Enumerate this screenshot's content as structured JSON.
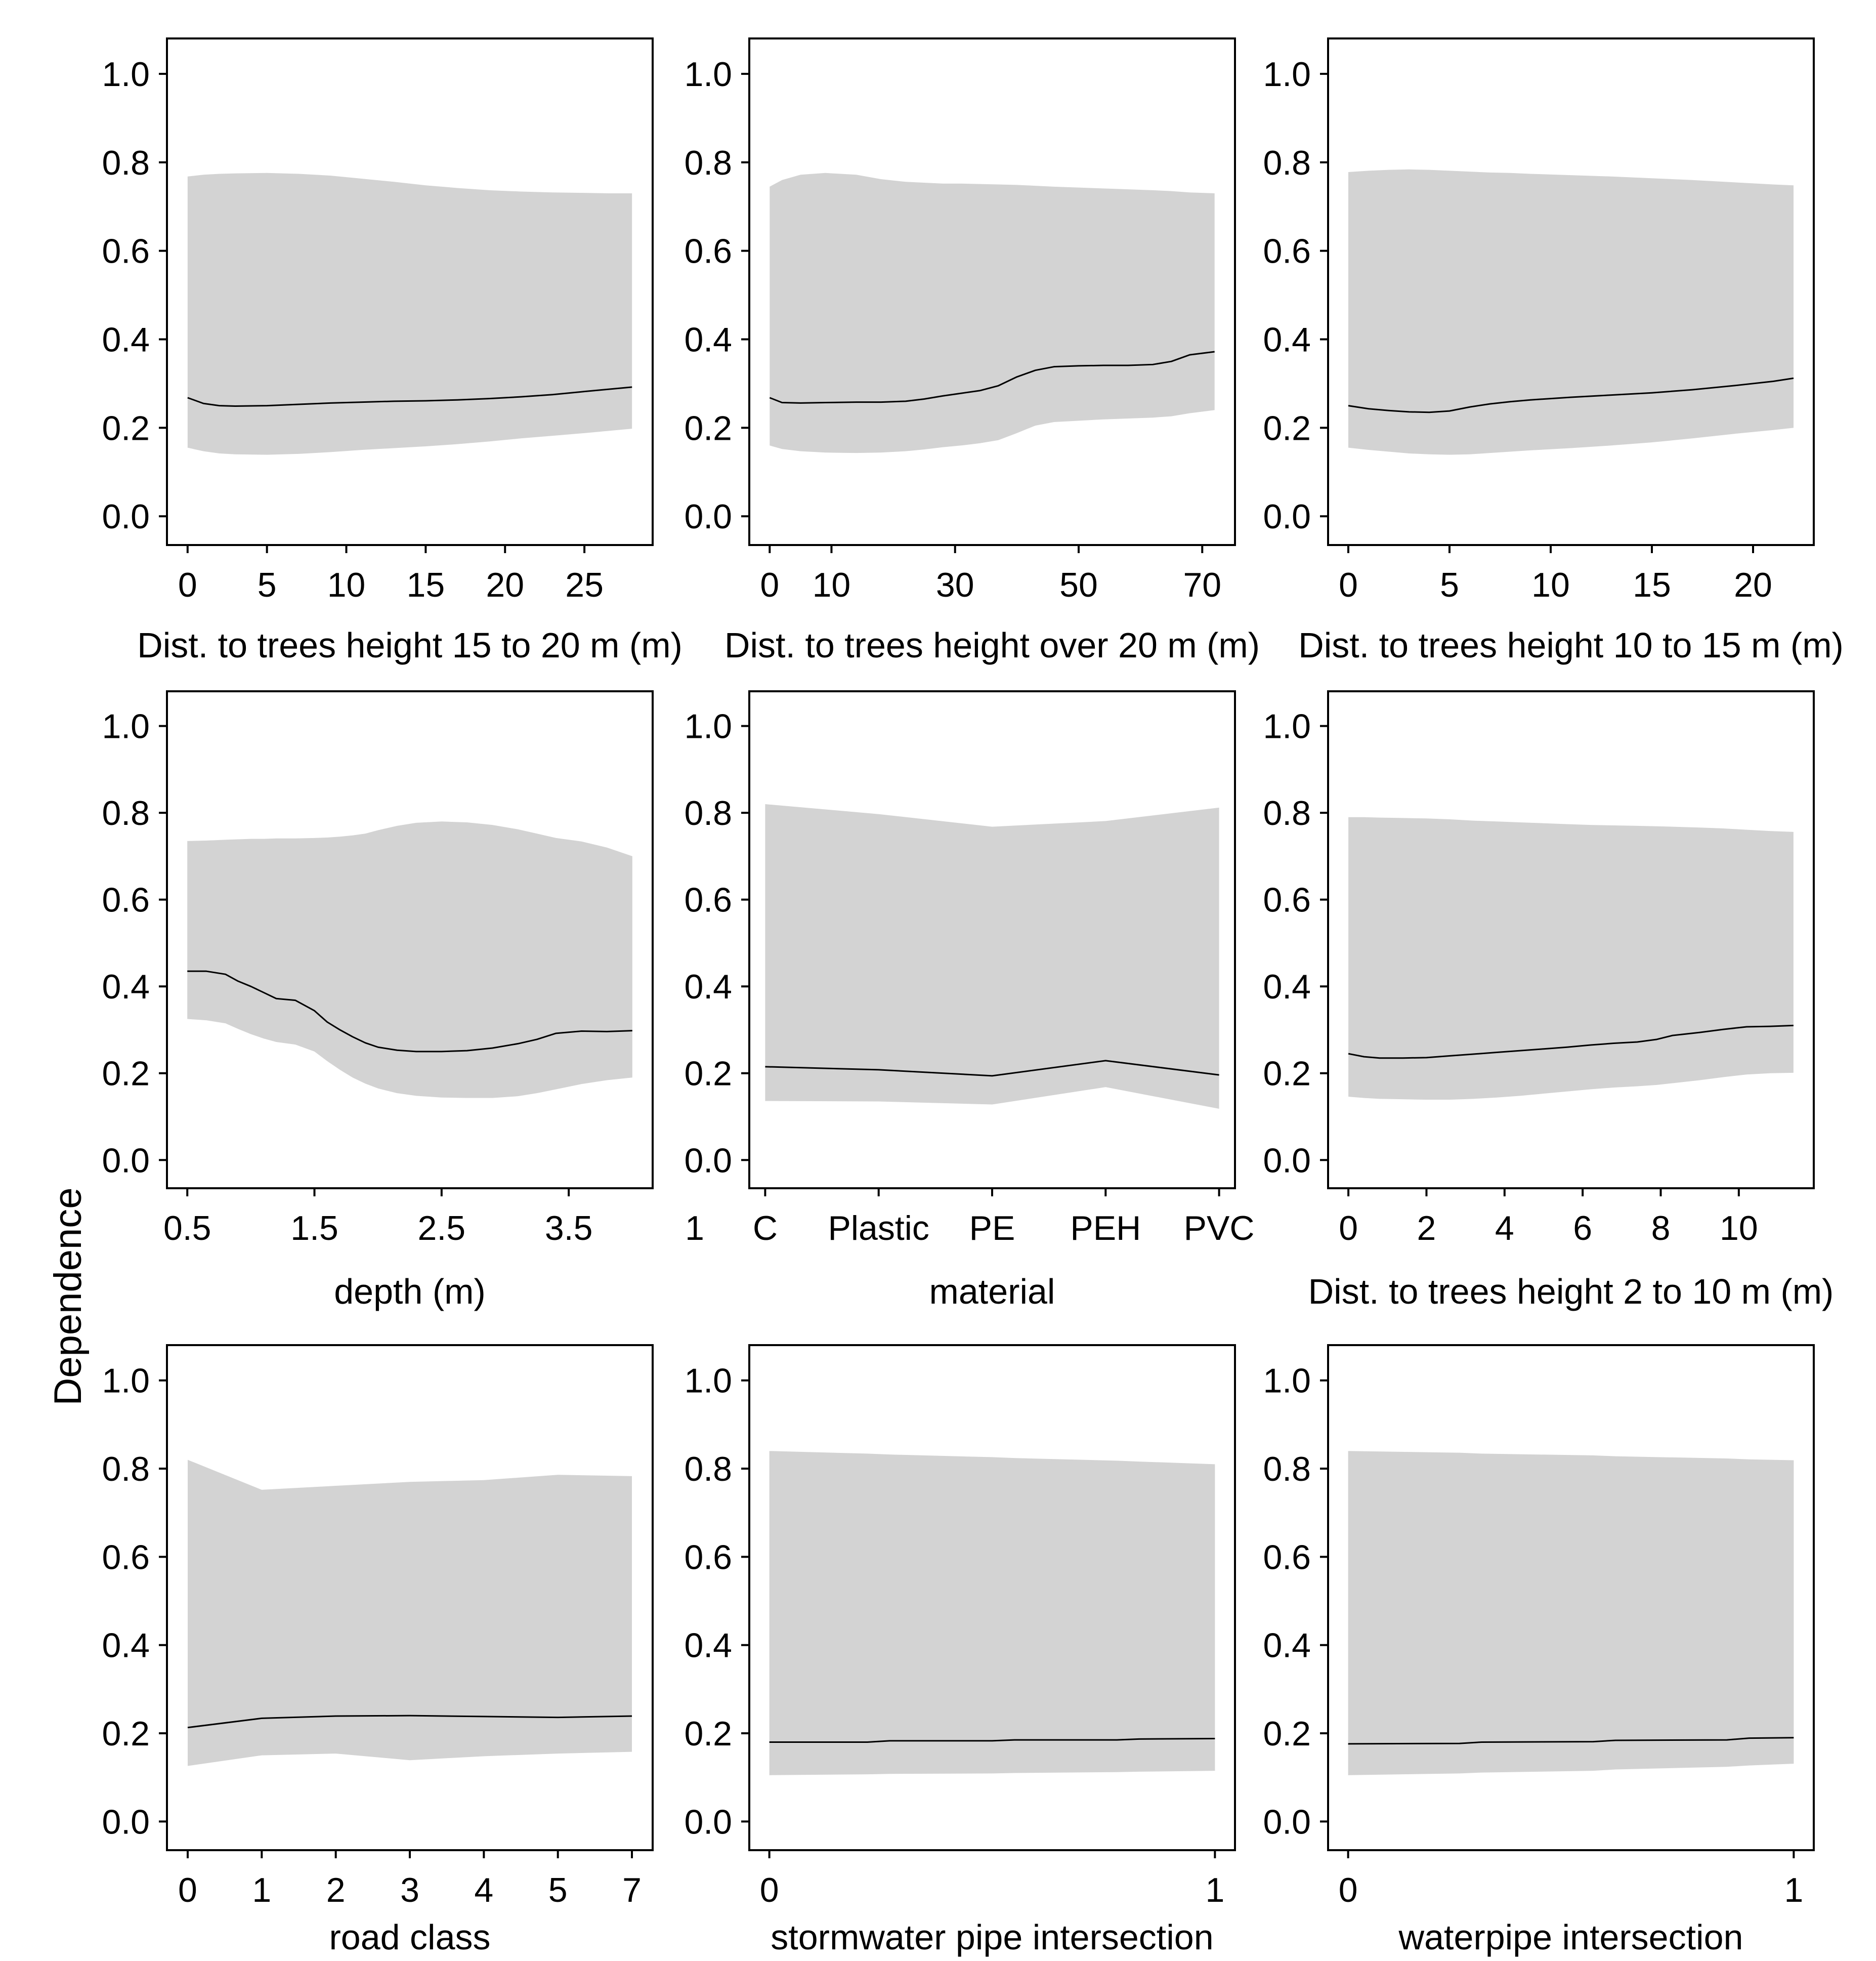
{
  "figure": {
    "background": "#ffffff",
    "band_color": "#d3d3d3",
    "line_color": "#000000",
    "axis_color": "#000000"
  },
  "chart_data": {
    "type": "line",
    "subtype": "partial-dependence-grid",
    "ylabel": "Dependence",
    "ylim": [
      0,
      1
    ],
    "yticks": [
      "0.0",
      "0.2",
      "0.4",
      "0.6",
      "0.8",
      "1.0"
    ],
    "grid": false,
    "legend": "none",
    "band_color": "#d3d3d3",
    "line_color": "#000000",
    "plots": [
      {
        "xlabel": "Dist. to trees height 15 to 20 m (m)",
        "xview": [
          -1.3,
          29.3
        ],
        "xticks": [
          {
            "v": 0,
            "label": "0"
          },
          {
            "v": 5,
            "label": "5"
          },
          {
            "v": 10,
            "label": "10"
          },
          {
            "v": 15,
            "label": "15"
          },
          {
            "v": 20,
            "label": "20"
          },
          {
            "v": 25,
            "label": "25"
          }
        ],
        "x": [
          0,
          1,
          2,
          3,
          5,
          7,
          9,
          11,
          13,
          15,
          17,
          19,
          21,
          23,
          25,
          26.5,
          28
        ],
        "line": [
          0.268,
          0.255,
          0.25,
          0.249,
          0.25,
          0.253,
          0.256,
          0.258,
          0.26,
          0.261,
          0.263,
          0.266,
          0.27,
          0.275,
          0.282,
          0.287,
          0.292
        ],
        "upper": [
          0.768,
          0.772,
          0.774,
          0.775,
          0.776,
          0.774,
          0.77,
          0.763,
          0.756,
          0.748,
          0.742,
          0.737,
          0.734,
          0.732,
          0.731,
          0.73,
          0.73
        ],
        "lower": [
          0.155,
          0.147,
          0.142,
          0.14,
          0.139,
          0.141,
          0.145,
          0.15,
          0.154,
          0.158,
          0.163,
          0.169,
          0.176,
          0.182,
          0.188,
          0.193,
          0.198
        ]
      },
      {
        "xlabel": "Dist. to trees height over 20 m (m)",
        "xview": [
          -3.3,
          75.3
        ],
        "xticks": [
          {
            "v": 0,
            "label": "0"
          },
          {
            "v": 10,
            "label": "10"
          },
          {
            "v": 30,
            "label": "30"
          },
          {
            "v": 50,
            "label": "50"
          },
          {
            "v": 70,
            "label": "70"
          }
        ],
        "x": [
          0,
          2,
          5,
          9,
          14,
          18,
          22,
          25,
          28,
          31,
          34,
          37,
          40,
          43,
          46,
          50,
          54,
          58,
          62,
          65,
          68,
          72
        ],
        "line": [
          0.268,
          0.257,
          0.256,
          0.257,
          0.258,
          0.258,
          0.26,
          0.265,
          0.272,
          0.278,
          0.284,
          0.295,
          0.315,
          0.33,
          0.338,
          0.34,
          0.341,
          0.341,
          0.343,
          0.35,
          0.365,
          0.372
        ],
        "upper": [
          0.745,
          0.76,
          0.772,
          0.776,
          0.772,
          0.762,
          0.756,
          0.754,
          0.752,
          0.752,
          0.751,
          0.75,
          0.749,
          0.747,
          0.745,
          0.743,
          0.741,
          0.739,
          0.737,
          0.735,
          0.732,
          0.73
        ],
        "lower": [
          0.16,
          0.152,
          0.147,
          0.144,
          0.143,
          0.144,
          0.147,
          0.151,
          0.156,
          0.16,
          0.165,
          0.172,
          0.188,
          0.205,
          0.213,
          0.216,
          0.219,
          0.221,
          0.223,
          0.226,
          0.233,
          0.24
        ]
      },
      {
        "xlabel": "Dist. to trees height 10 to 15 m (m)",
        "xview": [
          -1.0,
          23.0
        ],
        "xticks": [
          {
            "v": 0,
            "label": "0"
          },
          {
            "v": 5,
            "label": "5"
          },
          {
            "v": 10,
            "label": "10"
          },
          {
            "v": 15,
            "label": "15"
          },
          {
            "v": 20,
            "label": "20"
          }
        ],
        "x": [
          0,
          1,
          2,
          3,
          4,
          5,
          6,
          7,
          8,
          9,
          11,
          13,
          15,
          17,
          19,
          21,
          22
        ],
        "line": [
          0.25,
          0.243,
          0.239,
          0.236,
          0.235,
          0.238,
          0.247,
          0.254,
          0.259,
          0.263,
          0.269,
          0.274,
          0.279,
          0.286,
          0.295,
          0.305,
          0.312
        ],
        "upper": [
          0.778,
          0.781,
          0.783,
          0.784,
          0.783,
          0.781,
          0.779,
          0.777,
          0.776,
          0.774,
          0.771,
          0.768,
          0.764,
          0.76,
          0.755,
          0.75,
          0.748
        ],
        "lower": [
          0.155,
          0.15,
          0.146,
          0.142,
          0.14,
          0.139,
          0.14,
          0.143,
          0.146,
          0.149,
          0.154,
          0.16,
          0.167,
          0.176,
          0.186,
          0.195,
          0.2
        ]
      },
      {
        "xlabel": "depth (m)",
        "xview": [
          0.34,
          4.16
        ],
        "xticks": [
          {
            "v": 0.5,
            "label": "0.5"
          },
          {
            "v": 1.5,
            "label": "1.5"
          },
          {
            "v": 2.5,
            "label": "2.5"
          },
          {
            "v": 3.5,
            "label": "3.5"
          }
        ],
        "x": [
          0.5,
          0.65,
          0.8,
          0.9,
          1.0,
          1.1,
          1.2,
          1.35,
          1.5,
          1.6,
          1.7,
          1.8,
          1.9,
          2.0,
          2.15,
          2.3,
          2.5,
          2.7,
          2.9,
          3.1,
          3.25,
          3.4,
          3.6,
          3.8,
          4.0
        ],
        "line": [
          0.435,
          0.435,
          0.428,
          0.412,
          0.4,
          0.386,
          0.372,
          0.368,
          0.344,
          0.318,
          0.3,
          0.284,
          0.27,
          0.26,
          0.253,
          0.25,
          0.25,
          0.252,
          0.258,
          0.268,
          0.278,
          0.292,
          0.297,
          0.296,
          0.298
        ],
        "upper": [
          0.735,
          0.736,
          0.738,
          0.739,
          0.74,
          0.74,
          0.741,
          0.741,
          0.742,
          0.743,
          0.745,
          0.748,
          0.752,
          0.76,
          0.77,
          0.777,
          0.78,
          0.778,
          0.772,
          0.762,
          0.752,
          0.742,
          0.734,
          0.72,
          0.7
        ],
        "lower": [
          0.325,
          0.322,
          0.315,
          0.302,
          0.29,
          0.28,
          0.272,
          0.266,
          0.25,
          0.228,
          0.208,
          0.19,
          0.176,
          0.165,
          0.154,
          0.148,
          0.144,
          0.143,
          0.143,
          0.147,
          0.154,
          0.163,
          0.175,
          0.184,
          0.19
        ]
      },
      {
        "xlabel": "material",
        "xview": [
          0.86,
          5.14
        ],
        "xticks": [
          {
            "v": 1,
            "label": "C"
          },
          {
            "v": 2,
            "label": "Plastic"
          },
          {
            "v": 3,
            "label": "PE"
          },
          {
            "v": 4,
            "label": "PEH"
          },
          {
            "v": 5,
            "label": "PVC"
          }
        ],
        "pre_axis_label": "1",
        "x": [
          1,
          2,
          3,
          4,
          5
        ],
        "line": [
          0.215,
          0.208,
          0.194,
          0.229,
          0.196
        ],
        "upper": [
          0.82,
          0.797,
          0.768,
          0.781,
          0.812
        ],
        "lower": [
          0.136,
          0.135,
          0.128,
          0.168,
          0.118
        ]
      },
      {
        "xlabel": "Dist. to trees height 2 to 10 m (m)",
        "xview": [
          -0.52,
          11.92
        ],
        "xticks": [
          {
            "v": 0,
            "label": "0"
          },
          {
            "v": 2,
            "label": "2"
          },
          {
            "v": 4,
            "label": "4"
          },
          {
            "v": 6,
            "label": "6"
          },
          {
            "v": 8,
            "label": "8"
          },
          {
            "v": 10,
            "label": "10"
          }
        ],
        "x": [
          0,
          0.4,
          0.8,
          1.4,
          2,
          2.6,
          3.2,
          3.8,
          4.4,
          5,
          5.6,
          6.2,
          6.8,
          7.4,
          7.9,
          8.3,
          9,
          9.6,
          10.2,
          10.8,
          11.4
        ],
        "line": [
          0.245,
          0.238,
          0.235,
          0.235,
          0.236,
          0.24,
          0.244,
          0.248,
          0.252,
          0.256,
          0.26,
          0.265,
          0.269,
          0.272,
          0.278,
          0.287,
          0.294,
          0.301,
          0.307,
          0.308,
          0.31
        ],
        "upper": [
          0.79,
          0.79,
          0.789,
          0.788,
          0.787,
          0.785,
          0.782,
          0.78,
          0.778,
          0.776,
          0.774,
          0.772,
          0.771,
          0.77,
          0.769,
          0.768,
          0.766,
          0.764,
          0.761,
          0.758,
          0.756
        ],
        "lower": [
          0.146,
          0.143,
          0.141,
          0.14,
          0.139,
          0.139,
          0.141,
          0.144,
          0.148,
          0.153,
          0.158,
          0.163,
          0.167,
          0.17,
          0.173,
          0.177,
          0.184,
          0.191,
          0.197,
          0.2,
          0.201
        ]
      },
      {
        "xlabel": "road class",
        "xview": [
          -0.28,
          6.28
        ],
        "xticks": [
          {
            "v": 0,
            "label": "0"
          },
          {
            "v": 1,
            "label": "1"
          },
          {
            "v": 2,
            "label": "2"
          },
          {
            "v": 3,
            "label": "3"
          },
          {
            "v": 4,
            "label": "4"
          },
          {
            "v": 5,
            "label": "5"
          },
          {
            "v": 6,
            "label": "7"
          }
        ],
        "x": [
          0,
          1,
          2,
          3,
          4,
          5,
          6
        ],
        "line": [
          0.213,
          0.234,
          0.239,
          0.24,
          0.238,
          0.236,
          0.239
        ],
        "upper": [
          0.82,
          0.752,
          0.761,
          0.77,
          0.774,
          0.786,
          0.783
        ],
        "lower": [
          0.126,
          0.15,
          0.154,
          0.139,
          0.148,
          0.154,
          0.158
        ]
      },
      {
        "xlabel": "stormwater pipe intersection",
        "xview": [
          -0.045,
          1.045
        ],
        "xticks": [
          {
            "v": 0,
            "label": "0"
          },
          {
            "v": 1,
            "label": "1"
          }
        ],
        "x": [
          0,
          0.22,
          0.27,
          0.5,
          0.55,
          0.78,
          0.83,
          1
        ],
        "line": [
          0.18,
          0.18,
          0.183,
          0.183,
          0.185,
          0.185,
          0.187,
          0.188
        ],
        "upper": [
          0.84,
          0.834,
          0.832,
          0.826,
          0.824,
          0.818,
          0.816,
          0.81
        ],
        "lower": [
          0.105,
          0.107,
          0.108,
          0.109,
          0.11,
          0.112,
          0.113,
          0.115
        ]
      },
      {
        "xlabel": "waterpipe intersection",
        "xview": [
          -0.045,
          1.045
        ],
        "xticks": [
          {
            "v": 0,
            "label": "0"
          },
          {
            "v": 1,
            "label": "1"
          }
        ],
        "x": [
          0,
          0.25,
          0.3,
          0.55,
          0.6,
          0.85,
          0.9,
          1
        ],
        "line": [
          0.176,
          0.177,
          0.18,
          0.181,
          0.184,
          0.185,
          0.189,
          0.19
        ],
        "upper": [
          0.84,
          0.836,
          0.834,
          0.83,
          0.828,
          0.823,
          0.821,
          0.819
        ],
        "lower": [
          0.105,
          0.109,
          0.111,
          0.115,
          0.118,
          0.124,
          0.127,
          0.131
        ]
      }
    ]
  }
}
